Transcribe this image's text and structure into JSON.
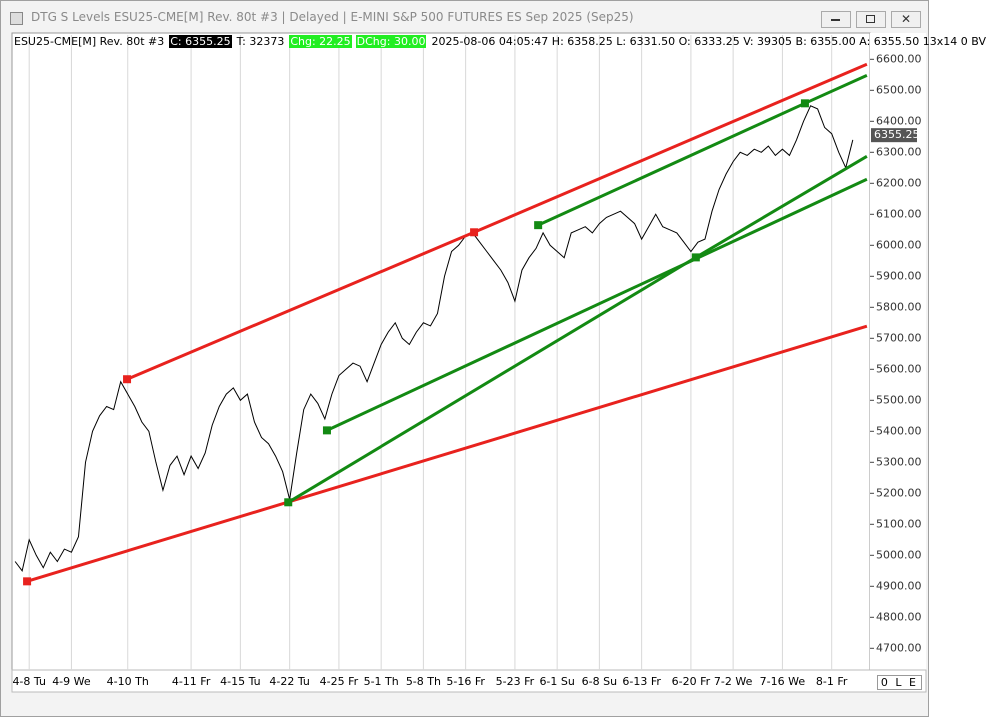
{
  "window": {
    "title": "DTG S Levels ESU25-CME[M]  Rev. 80t #3 | Delayed | E-MINI S&P 500 FUTURES ES Sep 2025 (Sep25)",
    "info_bar": {
      "symbol": "ESU25-CME[M]  Rev. 80t #3",
      "close": "C: 6355.25",
      "ticks": "T: 32373",
      "change": "Chg: 22.25",
      "daily_change": "DChg: 30.00",
      "details": "2025-08-06 04:05:47 H: 6358.25 L: 6331.50 O: 6333.25 V: 39305 B: 6355.00 A: 6355.50 13x14 0 BV"
    },
    "status": "0 L E"
  },
  "chart_data": {
    "type": "line",
    "categories": [
      null,
      null,
      "4-8 Tu",
      null,
      null,
      null,
      null,
      null,
      "4-9 We",
      null,
      null,
      null,
      null,
      null,
      null,
      null,
      "4-10 Th",
      null,
      null,
      null,
      null,
      null,
      null,
      null,
      null,
      "4-11 Fr",
      null,
      null,
      null,
      null,
      null,
      null,
      "4-15 Tu",
      null,
      null,
      null,
      null,
      null,
      null,
      "4-22 Tu",
      null,
      null,
      null,
      null,
      null,
      null,
      "4-25 Fr",
      null,
      null,
      null,
      null,
      null,
      "5-1 Th",
      null,
      null,
      null,
      null,
      null,
      "5-8 Th",
      null,
      null,
      null,
      null,
      null,
      "5-16 Fr",
      null,
      null,
      null,
      null,
      null,
      null,
      "5-23 Fr",
      null,
      null,
      null,
      null,
      null,
      "6-1 Su",
      null,
      null,
      null,
      null,
      null,
      "6-8 Su",
      null,
      null,
      null,
      null,
      null,
      "6-13 Fr",
      null,
      null,
      null,
      null,
      null,
      null,
      "6-20 Fr",
      null,
      null,
      null,
      null,
      null,
      "7-2 We",
      null,
      null,
      null,
      null,
      null,
      null,
      "7-16 We",
      null,
      null,
      null,
      null,
      null,
      null,
      "8-1 Fr",
      null,
      null,
      null
    ],
    "series": [
      {
        "color": "#000000",
        "values": [
          4980,
          4950,
          5050,
          5000,
          4960,
          5010,
          4980,
          5020,
          5010,
          5060,
          5300,
          5400,
          5450,
          5480,
          5470,
          5560,
          5520,
          5480,
          5430,
          5400,
          5300,
          5210,
          5290,
          5320,
          5260,
          5320,
          5280,
          5330,
          5420,
          5480,
          5520,
          5540,
          5500,
          5520,
          5430,
          5380,
          5360,
          5320,
          5270,
          5180,
          5330,
          5470,
          5520,
          5490,
          5440,
          5520,
          5580,
          5600,
          5620,
          5610,
          5560,
          5620,
          5680,
          5720,
          5750,
          5700,
          5680,
          5720,
          5750,
          5740,
          5780,
          5900,
          5980,
          6000,
          6030,
          6040,
          6010,
          5980,
          5950,
          5920,
          5880,
          5820,
          5920,
          5960,
          5990,
          6040,
          6000,
          5980,
          5960,
          6040,
          6050,
          6060,
          6040,
          6070,
          6090,
          6100,
          6110,
          6090,
          6070,
          6020,
          6060,
          6100,
          6060,
          6050,
          6040,
          6010,
          5980,
          6010,
          6020,
          6110,
          6180,
          6230,
          6270,
          6300,
          6290,
          6310,
          6300,
          6320,
          6290,
          6310,
          6290,
          6340,
          6400,
          6450,
          6440,
          6380,
          6360,
          6300,
          6250,
          6340
        ]
      }
    ],
    "last_price": 6355.25,
    "trend_lines": [
      {
        "color": "#e8221e",
        "x": [
          15.9,
          65.2,
          121
        ],
        "y": [
          5568,
          6042,
          6584
        ],
        "markers": [
          true,
          true,
          false
        ]
      },
      {
        "color": "#e8221e",
        "x": [
          1.7,
          121
        ],
        "y": [
          4916,
          5739
        ],
        "markers": [
          true,
          false
        ]
      },
      {
        "color": "#138a13",
        "x": [
          74.3,
          112.2,
          121
        ],
        "y": [
          6065,
          6458,
          6548
        ],
        "markers": [
          true,
          true,
          false
        ]
      },
      {
        "color": "#138a13",
        "x": [
          38.8,
          96.7,
          121
        ],
        "y": [
          5171,
          5961,
          6287
        ],
        "markers": [
          true,
          true,
          false
        ]
      },
      {
        "color": "#138a13",
        "x": [
          44.3,
          121
        ],
        "y": [
          5403,
          6213
        ],
        "markers": [
          true,
          false
        ]
      }
    ],
    "xlim": [
      -0.3,
      121.3
    ],
    "ylim": [
      4630,
      6630
    ],
    "yticks": [
      {
        "value": 4700,
        "label": "4700.00"
      },
      {
        "value": 4800,
        "label": "4800.00"
      },
      {
        "value": 4900,
        "label": "4900.00"
      },
      {
        "value": 5000,
        "label": "5000.00"
      },
      {
        "value": 5100,
        "label": "5100.00"
      },
      {
        "value": 5200,
        "label": "5200.00"
      },
      {
        "value": 5300,
        "label": "5300.00"
      },
      {
        "value": 5400,
        "label": "5400.00"
      },
      {
        "value": 5500,
        "label": "5500.00"
      },
      {
        "value": 5600,
        "label": "5600.00"
      },
      {
        "value": 5700,
        "label": "5700.00"
      },
      {
        "value": 5800,
        "label": "5800.00"
      },
      {
        "value": 5900,
        "label": "5900.00"
      },
      {
        "value": 6000,
        "label": "6000.00"
      },
      {
        "value": 6100,
        "label": "6100.00"
      },
      {
        "value": 6200,
        "label": "6200.00"
      },
      {
        "value": 6300,
        "label": "6300.00"
      },
      {
        "value": 6400,
        "label": "6400.00"
      },
      {
        "value": 6500,
        "label": "6500.00"
      },
      {
        "value": 6600,
        "label": "6600.00"
      }
    ],
    "grid": true
  }
}
